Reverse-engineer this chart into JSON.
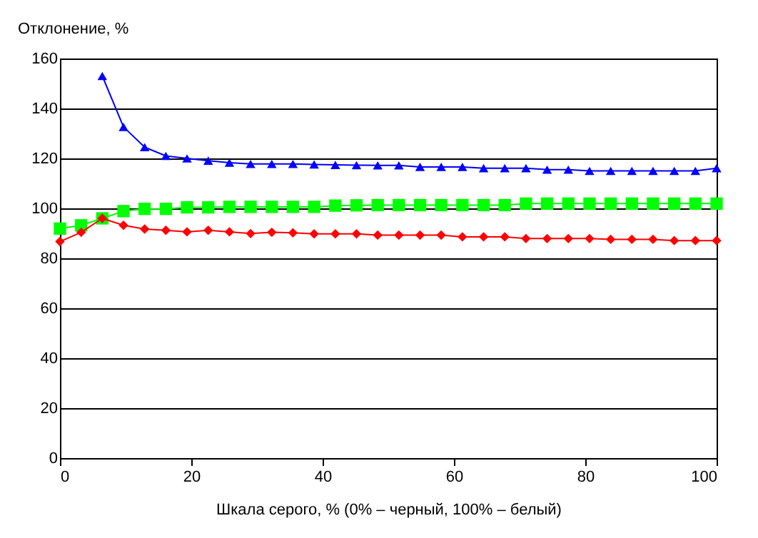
{
  "chart_data": {
    "type": "line",
    "xlabel": "Шкала серого, % (0% – черный, 100% – белый)",
    "ylabel": "Отклонение, %",
    "x": [
      0,
      3.23,
      6.45,
      9.68,
      12.9,
      16.13,
      19.35,
      22.58,
      25.81,
      29.03,
      32.26,
      35.48,
      38.71,
      41.94,
      45.16,
      48.39,
      51.61,
      54.84,
      58.06,
      61.29,
      64.52,
      67.74,
      70.97,
      74.19,
      77.42,
      80.65,
      83.87,
      87.1,
      90.32,
      93.55,
      96.77,
      100
    ],
    "series": [
      {
        "color": "#0000ff",
        "marker": "triangle",
        "values": [
          null,
          null,
          153,
          132.6,
          124.5,
          121,
          120,
          119.1,
          118.3,
          117.8,
          117.8,
          117.8,
          117.6,
          117.4,
          117.3,
          117.2,
          117.2,
          116.6,
          116.6,
          116.6,
          116.1,
          116.1,
          116.1,
          115.5,
          115.5,
          115,
          115,
          115,
          115,
          115,
          115,
          116.1
        ]
      },
      {
        "color": "#00ff00",
        "marker": "square",
        "values": [
          91.9,
          93.2,
          96,
          98.9,
          99.8,
          99.8,
          100.4,
          100.4,
          100.6,
          100.6,
          100.6,
          100.6,
          100.6,
          101.1,
          101.2,
          101.3,
          101.3,
          101.3,
          101.3,
          101.3,
          101.3,
          101.3,
          101.9,
          101.9,
          101.9,
          101.9,
          101.9,
          101.9,
          101.9,
          101.9,
          101.9,
          101.9
        ]
      },
      {
        "color": "#ff0000",
        "marker": "diamond",
        "values": [
          86.7,
          90.4,
          96,
          93.2,
          91.7,
          91.2,
          90.6,
          91.2,
          90.6,
          89.9,
          90.4,
          90.2,
          89.8,
          89.8,
          89.8,
          89.3,
          89.3,
          89.3,
          89.3,
          88.6,
          88.6,
          88.6,
          87.9,
          87.9,
          87.9,
          87.9,
          87.6,
          87.6,
          87.6,
          87.1,
          87.1,
          87.1
        ]
      }
    ],
    "xlim": [
      0,
      100
    ],
    "xticks": [
      0,
      20,
      40,
      60,
      80,
      100
    ],
    "ylim": [
      0,
      160
    ],
    "yticks": [
      0,
      20,
      40,
      60,
      80,
      100,
      120,
      140,
      160
    ],
    "grid": "y",
    "line_style": "solid"
  }
}
